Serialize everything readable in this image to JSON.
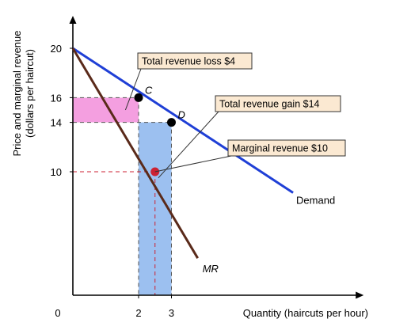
{
  "chart_data": {
    "type": "line",
    "xlabel": "Quantity (haircuts per hour)",
    "ylabel": [
      "Price and marginal revenue",
      "(dollars per haircut)"
    ],
    "xlim": [
      0,
      8.8
    ],
    "ylim": [
      0,
      22.5
    ],
    "origin_label": "0",
    "x_ticks": [
      2,
      3
    ],
    "y_ticks": [
      20,
      16,
      14,
      10
    ],
    "series": [
      {
        "name": "Demand",
        "color": "#1f3fd6",
        "points": [
          [
            0,
            20
          ],
          [
            6.7,
            8.3
          ]
        ]
      },
      {
        "name": "MR",
        "color": "#5a2a1a",
        "points": [
          [
            0,
            20
          ],
          [
            3.8,
            3
          ]
        ]
      }
    ],
    "points": [
      {
        "label": "C",
        "x": 2,
        "y": 16,
        "color": "#000000"
      },
      {
        "label": "D",
        "x": 3,
        "y": 14,
        "color": "#000000"
      },
      {
        "label": "",
        "x": 2.5,
        "y": 10,
        "color": "#cc2233"
      }
    ],
    "regions": [
      {
        "name": "total-revenue-loss",
        "x": [
          0,
          2
        ],
        "y": [
          14,
          16
        ],
        "color": "#f49fe0"
      },
      {
        "name": "total-revenue-gain",
        "x": [
          2,
          3
        ],
        "y": [
          0,
          14
        ],
        "color": "#9cc0f0"
      }
    ],
    "annotations": [
      {
        "text": "Total revenue loss $4",
        "target": [
          1.6,
          15
        ]
      },
      {
        "text": "Total revenue gain $14",
        "target": [
          2.6,
          9.5
        ]
      },
      {
        "text": "Marginal revenue $10",
        "target": [
          2.5,
          10
        ]
      }
    ]
  }
}
